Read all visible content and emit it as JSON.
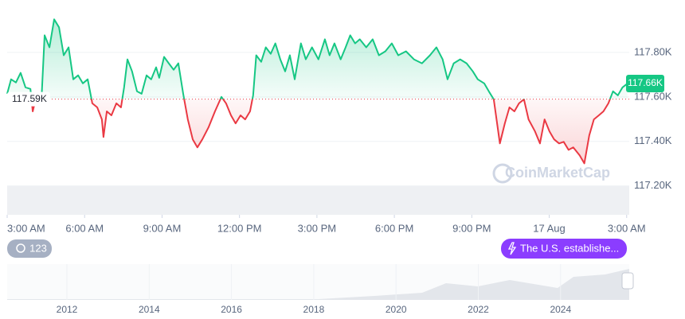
{
  "chart_data": {
    "type": "line",
    "x": [
      0,
      0.15,
      0.34,
      0.52,
      0.71,
      0.9,
      0.99,
      1.14,
      1.33,
      1.45,
      1.64,
      1.82,
      2.01,
      2.19,
      2.38,
      2.56,
      2.75,
      2.93,
      3.12,
      3.3,
      3.49,
      3.67,
      3.73,
      3.86,
      4.04,
      4.23,
      4.41,
      4.53,
      4.66,
      4.84,
      5.03,
      5.21,
      5.4,
      5.58,
      5.77,
      5.89,
      6.08,
      6.26,
      6.45,
      6.63,
      6.82,
      7,
      7.19,
      7.37,
      7.56,
      7.8,
      8.05,
      8.3,
      8.48,
      8.67,
      8.85,
      9.04,
      9.22,
      9.41,
      9.53,
      9.65,
      9.84,
      10.02,
      10.21,
      10.39,
      10.58,
      10.77,
      10.95,
      11.14,
      11.38,
      11.57,
      11.81,
      12.06,
      12.31,
      12.49,
      12.68,
      12.92,
      13.11,
      13.29,
      13.48,
      13.66,
      13.91,
      14.16,
      14.4,
      14.65,
      14.9,
      15.15,
      15.45,
      15.76,
      16.07,
      16.38,
      16.63,
      16.87,
      17.06,
      17.3,
      17.55,
      17.8,
      18.04,
      18.23,
      18.48,
      18.66,
      18.85,
      19.09,
      19.28,
      19.46,
      19.65,
      19.83,
      20.02,
      20.2,
      20.45,
      20.64,
      20.82,
      21.01,
      21.19,
      21.38,
      21.56,
      21.75,
      21.93,
      22.18,
      22.36,
      22.55,
      22.73,
      22.92,
      23.1,
      23.29,
      23.47,
      23.66,
      23.84,
      24.03
    ],
    "values": [
      117.614,
      117.679,
      117.665,
      117.708,
      117.643,
      117.636,
      117.535,
      117.607,
      117.589,
      117.877,
      117.823,
      117.949,
      117.913,
      117.787,
      117.823,
      117.679,
      117.697,
      117.661,
      117.679,
      117.571,
      117.553,
      117.499,
      117.42,
      117.535,
      117.517,
      117.571,
      117.553,
      117.643,
      117.769,
      117.715,
      117.625,
      117.614,
      117.697,
      117.679,
      117.733,
      117.686,
      117.78,
      117.751,
      117.722,
      117.751,
      117.614,
      117.499,
      117.409,
      117.373,
      117.409,
      117.463,
      117.535,
      117.6,
      117.571,
      117.517,
      117.481,
      117.517,
      117.499,
      117.535,
      117.607,
      117.787,
      117.758,
      117.823,
      117.794,
      117.841,
      117.769,
      117.715,
      117.787,
      117.679,
      117.841,
      117.769,
      117.823,
      117.769,
      117.859,
      117.787,
      117.841,
      117.769,
      117.823,
      117.877,
      117.841,
      117.859,
      117.823,
      117.859,
      117.787,
      117.805,
      117.841,
      117.787,
      117.805,
      117.769,
      117.751,
      117.787,
      117.823,
      117.769,
      117.679,
      117.751,
      117.769,
      117.751,
      117.715,
      117.679,
      117.661,
      117.625,
      117.589,
      117.391,
      117.481,
      117.553,
      117.535,
      117.571,
      117.589,
      117.499,
      117.445,
      117.391,
      117.499,
      117.445,
      117.409,
      117.391,
      117.398,
      117.362,
      117.373,
      117.337,
      117.301,
      117.427,
      117.499,
      117.517,
      117.535,
      117.571,
      117.625,
      117.607,
      117.643,
      117.66
    ],
    "up_color": "#16c784",
    "down_color": "#ea3943",
    "baseline": {
      "value": 117.59,
      "label": "117.59K"
    },
    "current": {
      "value": 117.66,
      "label": "117.66K"
    },
    "xlim": [
      0,
      24.1
    ],
    "ylim": [
      117.07,
      118.0
    ],
    "xticks": [
      {
        "value": 0,
        "label": "3:00 AM"
      },
      {
        "value": 3,
        "label": "6:00 AM"
      },
      {
        "value": 6,
        "label": "9:00 AM"
      },
      {
        "value": 9,
        "label": "12:00 PM"
      },
      {
        "value": 12,
        "label": "3:00 PM"
      },
      {
        "value": 15,
        "label": "6:00 PM"
      },
      {
        "value": 18,
        "label": "9:00 PM"
      },
      {
        "value": 21,
        "label": "17 Aug"
      },
      {
        "value": 24,
        "label": "3:00 AM"
      }
    ],
    "yticks": [
      {
        "value": 117.2,
        "label": "117.20K"
      },
      {
        "value": 117.4,
        "label": "117.40K"
      },
      {
        "value": 117.6,
        "label": "117.60K"
      },
      {
        "value": 117.8,
        "label": "117.80K"
      }
    ],
    "grid": true
  },
  "watermark": "CoinMarketCap",
  "events_badge": 123,
  "news_pill": "The U.S. establishe...",
  "navigator": {
    "years": [
      "2012",
      "2014",
      "2016",
      "2018",
      "2020",
      "2022",
      "2024"
    ]
  }
}
